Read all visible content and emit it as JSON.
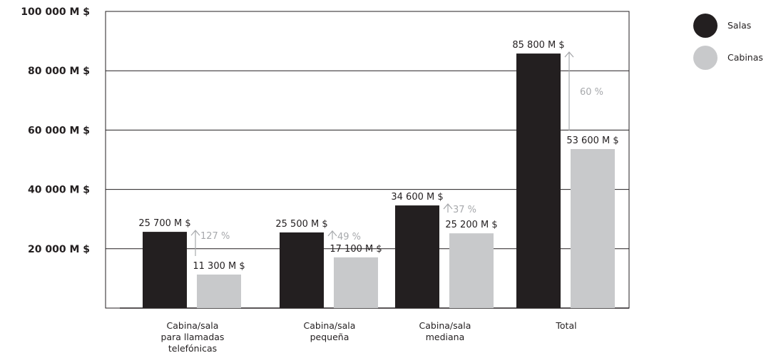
{
  "chart_data": {
    "type": "bar",
    "categories": [
      [
        "Cabina/sala",
        "para llamadas",
        "telefónicas"
      ],
      [
        "Cabina/sala",
        "pequeña"
      ],
      [
        "Cabina/sala",
        "mediana"
      ],
      [
        "Total"
      ]
    ],
    "series": [
      {
        "name": "Salas",
        "color": "#231f20",
        "values": [
          25700,
          25500,
          34600,
          85800
        ],
        "labels": [
          "25 700 M $",
          "25 500 M $",
          "34 600 M $",
          "85 800 M $"
        ]
      },
      {
        "name": "Cabinas",
        "color": "#c8c9cb",
        "values": [
          11300,
          17100,
          25200,
          53600
        ],
        "labels": [
          "11 300 M $",
          "17 100 M $",
          "25 200 M $",
          "53 600 M $"
        ]
      }
    ],
    "differences": [
      "127 %",
      "49 %",
      "37 %",
      "60 %"
    ],
    "ylim": [
      0,
      100000
    ],
    "yticks": [
      {
        "value": 20000,
        "label": "20 000 M $"
      },
      {
        "value": 40000,
        "label": "40 000 M $"
      },
      {
        "value": 60000,
        "label": "60 000 M $"
      },
      {
        "value": 80000,
        "label": "80 000 M $"
      },
      {
        "value": 100000,
        "label": "100 000 M $"
      }
    ],
    "grid": true,
    "legend_position": "right",
    "colors": {
      "axis": "#231f20",
      "arrow": "#a7a9ac",
      "difference_text": "#a7a9ac"
    }
  }
}
